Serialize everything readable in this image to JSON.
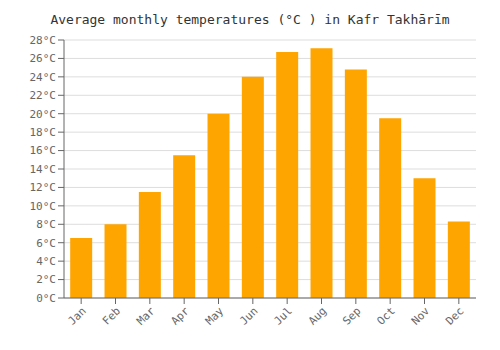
{
  "chart_data": {
    "type": "bar",
    "title": "Average monthly temperatures (°C ) in Kafr Takhārīm",
    "categories": [
      "Jan",
      "Feb",
      "Mar",
      "Apr",
      "May",
      "Jun",
      "Jul",
      "Aug",
      "Sep",
      "Oct",
      "Nov",
      "Dec"
    ],
    "values": [
      6.5,
      8.0,
      11.5,
      15.5,
      20.0,
      24.0,
      26.7,
      27.1,
      24.8,
      19.5,
      13.0,
      8.3
    ],
    "color": "#FFA500",
    "ylim": [
      0,
      28
    ],
    "yticks": [
      {
        "value": 0,
        "label": "0°C"
      },
      {
        "value": 2,
        "label": "2°C"
      },
      {
        "value": 4,
        "label": "4°C"
      },
      {
        "value": 6,
        "label": "6°C"
      },
      {
        "value": 8,
        "label": "8°C"
      },
      {
        "value": 10,
        "label": "10°C"
      },
      {
        "value": 12,
        "label": "12°C"
      },
      {
        "value": 14,
        "label": "14°C"
      },
      {
        "value": 16,
        "label": "16°C"
      },
      {
        "value": 18,
        "label": "18°C"
      },
      {
        "value": 20,
        "label": "20°C"
      },
      {
        "value": 22,
        "label": "22°C"
      },
      {
        "value": 24,
        "label": "24°C"
      },
      {
        "value": 26,
        "label": "26°C"
      },
      {
        "value": 28,
        "label": "28°C"
      }
    ],
    "grid": true
  }
}
